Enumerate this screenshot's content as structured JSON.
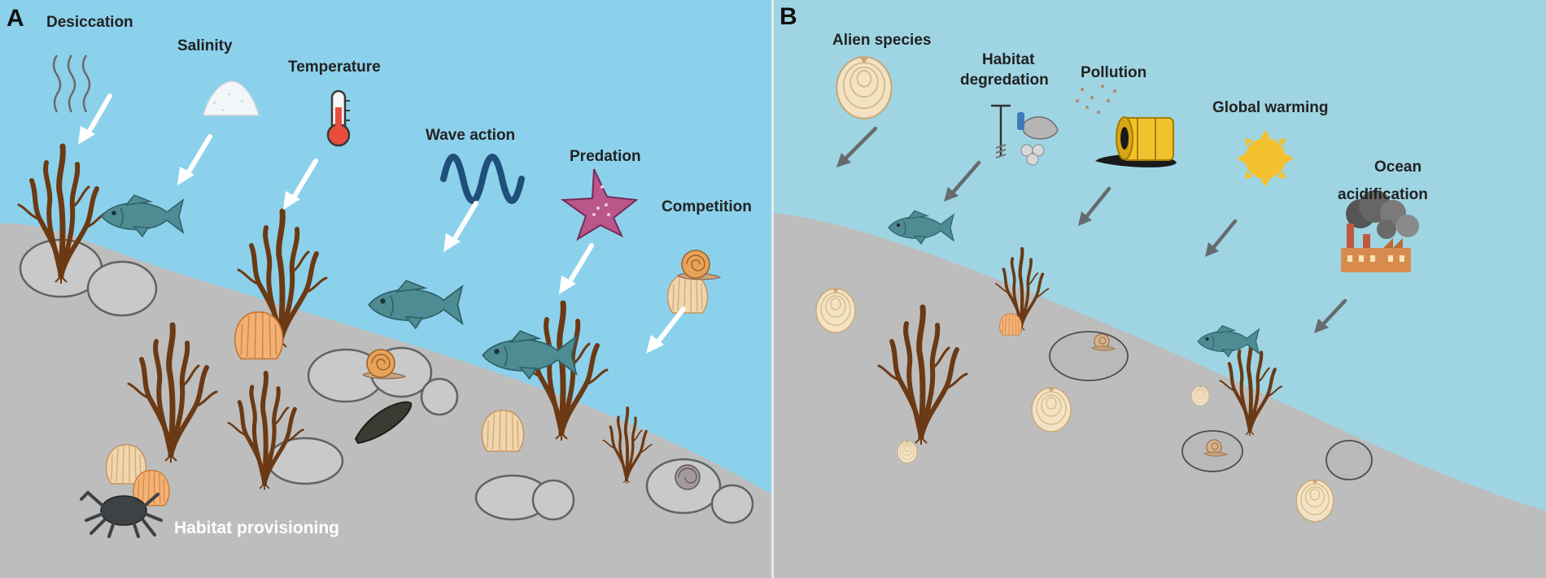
{
  "panels": {
    "a": {
      "letter": "A",
      "stressors": [
        "Desiccation",
        "Salinity",
        "Temperature",
        "Wave action",
        "Predation",
        "Competition"
      ],
      "function_label": "Habitat provisioning"
    },
    "b": {
      "letter": "B",
      "stressors": [
        "Alien species",
        "Habitat",
        "degredation",
        "Pollution",
        "Global warming",
        "Ocean",
        "acidification"
      ]
    }
  },
  "colors": {
    "water_a": "#8cd1ec",
    "water_b": "#9fd5e3",
    "seabed": "#bdbdbd",
    "kelp": "#6b3a14",
    "arrow_a": "#ffffff",
    "arrow_b": "#666b6e"
  },
  "icons": [
    "heat-waves-icon",
    "salt-pile-icon",
    "thermometer-icon",
    "wave-icon",
    "starfish-icon",
    "snail-icon",
    "fish-icon",
    "kelp-icon",
    "cockle-shell-icon",
    "mussel-icon",
    "crab-icon",
    "alien-shell-icon",
    "dredge-tool-icon",
    "oil-barrel-icon",
    "sun-icon",
    "factory-icon"
  ]
}
